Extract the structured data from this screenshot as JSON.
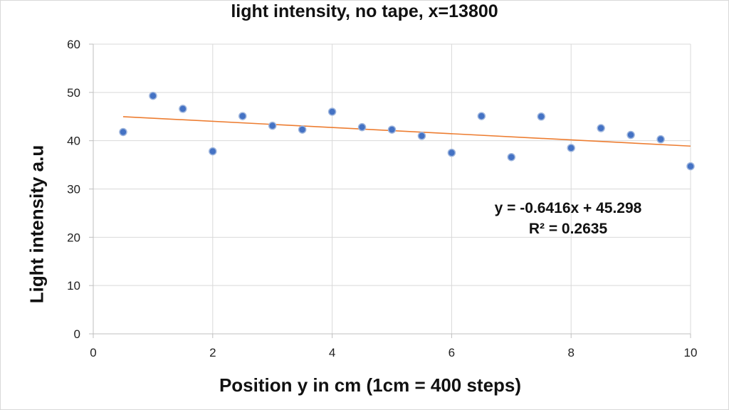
{
  "chart_data": {
    "type": "scatter",
    "title": "light intensity, no tape, x=13800",
    "xlabel": "Position y in cm (1cm = 400 steps)",
    "ylabel": "Light intensity a.u",
    "xlim": [
      0,
      10
    ],
    "ylim": [
      0,
      60
    ],
    "xticks": [
      0,
      2,
      4,
      6,
      8,
      10
    ],
    "yticks": [
      0,
      10,
      20,
      30,
      40,
      50,
      60
    ],
    "grid": true,
    "series": [
      {
        "color": "#4472c4",
        "points": [
          {
            "x": 0.5,
            "y": 41.8
          },
          {
            "x": 1.0,
            "y": 49.3
          },
          {
            "x": 1.5,
            "y": 46.6
          },
          {
            "x": 2.0,
            "y": 37.8
          },
          {
            "x": 2.5,
            "y": 45.1
          },
          {
            "x": 3.0,
            "y": 43.1
          },
          {
            "x": 3.5,
            "y": 42.3
          },
          {
            "x": 4.0,
            "y": 46.0
          },
          {
            "x": 4.5,
            "y": 42.8
          },
          {
            "x": 5.0,
            "y": 42.3
          },
          {
            "x": 5.5,
            "y": 41.0
          },
          {
            "x": 6.0,
            "y": 37.5
          },
          {
            "x": 6.5,
            "y": 45.1
          },
          {
            "x": 7.0,
            "y": 36.6
          },
          {
            "x": 7.5,
            "y": 45.0
          },
          {
            "x": 8.0,
            "y": 38.5
          },
          {
            "x": 8.5,
            "y": 42.6
          },
          {
            "x": 9.0,
            "y": 41.2
          },
          {
            "x": 9.5,
            "y": 40.3
          },
          {
            "x": 10.0,
            "y": 34.7
          }
        ]
      }
    ],
    "trendline": {
      "type": "linear",
      "slope": -0.6416,
      "intercept": 45.298,
      "x_range": [
        0.5,
        10
      ],
      "color": "#ed7d31",
      "equation": "y = -0.6416x + 45.298",
      "r_squared": "R² = 0.2635"
    }
  }
}
